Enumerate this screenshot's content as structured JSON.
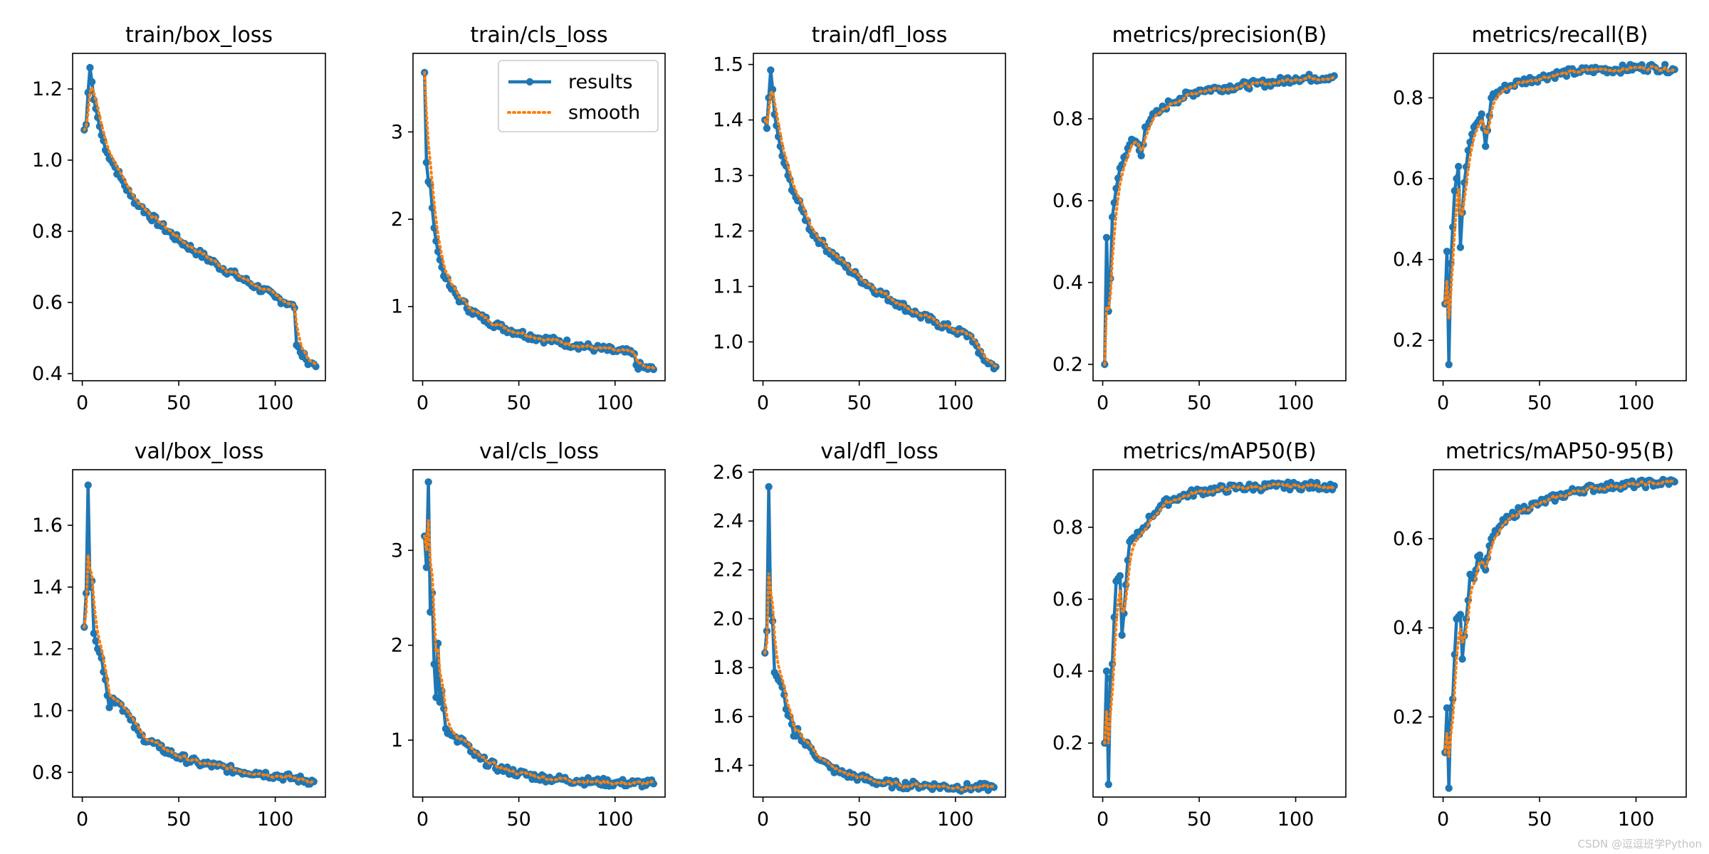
{
  "figure": {
    "legend_labels": {
      "results": "results",
      "smooth": "smooth"
    },
    "watermark": "CSDN @逗逗班学Python",
    "colors": {
      "results": "#1f77b4",
      "smooth": "#ff7f0e",
      "axes": "#000000"
    }
  },
  "chart_data": [
    {
      "type": "line",
      "title": "train/box_loss",
      "xlim": [
        -5,
        126
      ],
      "ylim": [
        0.38,
        1.3
      ],
      "xticks": [
        0,
        50,
        100
      ],
      "yticks": [
        0.4,
        0.6,
        0.8,
        1.0,
        1.2
      ],
      "ytick_labels": [
        "0.4",
        "0.6",
        "0.8",
        "1.0",
        "1.2"
      ],
      "legend": false,
      "key_points": [
        [
          1,
          1.085
        ],
        [
          2,
          1.1
        ],
        [
          3,
          1.19
        ],
        [
          4,
          1.26
        ],
        [
          5,
          1.22
        ],
        [
          6,
          1.17
        ],
        [
          8,
          1.12
        ],
        [
          10,
          1.07
        ],
        [
          13,
          1.02
        ],
        [
          16,
          0.99
        ],
        [
          20,
          0.95
        ],
        [
          25,
          0.9
        ],
        [
          30,
          0.87
        ],
        [
          40,
          0.82
        ],
        [
          50,
          0.775
        ],
        [
          60,
          0.74
        ],
        [
          70,
          0.705
        ],
        [
          80,
          0.675
        ],
        [
          90,
          0.645
        ],
        [
          100,
          0.615
        ],
        [
          108,
          0.595
        ],
        [
          110,
          0.585
        ],
        [
          111,
          0.48
        ],
        [
          113,
          0.46
        ],
        [
          116,
          0.44
        ],
        [
          119,
          0.43
        ],
        [
          121,
          0.42
        ]
      ]
    },
    {
      "type": "line",
      "title": "train/cls_loss",
      "xlim": [
        -5,
        126
      ],
      "ylim": [
        0.15,
        3.9
      ],
      "xticks": [
        0,
        50,
        100
      ],
      "yticks": [
        1,
        2,
        3
      ],
      "ytick_labels": [
        "1",
        "2",
        "3"
      ],
      "legend": true,
      "key_points": [
        [
          1,
          3.68
        ],
        [
          2,
          2.65
        ],
        [
          3,
          2.43
        ],
        [
          4,
          2.4
        ],
        [
          5,
          2.13
        ],
        [
          6,
          1.9
        ],
        [
          7,
          1.75
        ],
        [
          8,
          1.63
        ],
        [
          10,
          1.45
        ],
        [
          12,
          1.32
        ],
        [
          15,
          1.2
        ],
        [
          20,
          1.06
        ],
        [
          25,
          0.96
        ],
        [
          30,
          0.88
        ],
        [
          40,
          0.77
        ],
        [
          50,
          0.7
        ],
        [
          60,
          0.64
        ],
        [
          70,
          0.6
        ],
        [
          80,
          0.56
        ],
        [
          90,
          0.52
        ],
        [
          100,
          0.49
        ],
        [
          110,
          0.46
        ],
        [
          111,
          0.33
        ],
        [
          115,
          0.3
        ],
        [
          120,
          0.28
        ]
      ]
    },
    {
      "type": "line",
      "title": "train/dfl_loss",
      "xlim": [
        -5,
        126
      ],
      "ylim": [
        0.93,
        1.52
      ],
      "xticks": [
        0,
        50,
        100
      ],
      "yticks": [
        1.0,
        1.1,
        1.2,
        1.3,
        1.4,
        1.5
      ],
      "ytick_labels": [
        "1.0",
        "1.1",
        "1.2",
        "1.3",
        "1.4",
        "1.5"
      ],
      "legend": false,
      "key_points": [
        [
          1,
          1.4
        ],
        [
          2,
          1.385
        ],
        [
          3,
          1.44
        ],
        [
          4,
          1.49
        ],
        [
          5,
          1.455
        ],
        [
          6,
          1.41
        ],
        [
          8,
          1.37
        ],
        [
          10,
          1.335
        ],
        [
          13,
          1.3
        ],
        [
          16,
          1.27
        ],
        [
          20,
          1.24
        ],
        [
          25,
          1.2
        ],
        [
          30,
          1.18
        ],
        [
          40,
          1.145
        ],
        [
          50,
          1.115
        ],
        [
          60,
          1.09
        ],
        [
          70,
          1.07
        ],
        [
          80,
          1.05
        ],
        [
          90,
          1.035
        ],
        [
          100,
          1.02
        ],
        [
          108,
          1.01
        ],
        [
          110,
          1.0
        ],
        [
          112,
          0.98
        ],
        [
          116,
          0.965
        ],
        [
          121,
          0.955
        ]
      ]
    },
    {
      "type": "line",
      "title": "metrics/precision(B)",
      "xlim": [
        -5,
        126
      ],
      "ylim": [
        0.16,
        0.96
      ],
      "xticks": [
        0,
        50,
        100
      ],
      "yticks": [
        0.2,
        0.4,
        0.6,
        0.8
      ],
      "ytick_labels": [
        "0.2",
        "0.4",
        "0.6",
        "0.8"
      ],
      "legend": false,
      "key_points": [
        [
          1,
          0.2
        ],
        [
          2,
          0.51
        ],
        [
          3,
          0.33
        ],
        [
          4,
          0.41
        ],
        [
          5,
          0.56
        ],
        [
          7,
          0.63
        ],
        [
          9,
          0.68
        ],
        [
          12,
          0.71
        ],
        [
          15,
          0.75
        ],
        [
          18,
          0.74
        ],
        [
          20,
          0.71
        ],
        [
          22,
          0.78
        ],
        [
          25,
          0.8
        ],
        [
          30,
          0.82
        ],
        [
          35,
          0.84
        ],
        [
          40,
          0.85
        ],
        [
          50,
          0.87
        ],
        [
          60,
          0.875
        ],
        [
          70,
          0.88
        ],
        [
          80,
          0.885
        ],
        [
          90,
          0.89
        ],
        [
          100,
          0.9
        ],
        [
          110,
          0.9
        ],
        [
          120,
          0.905
        ]
      ]
    },
    {
      "type": "line",
      "title": "metrics/recall(B)",
      "xlim": [
        -5,
        126
      ],
      "ylim": [
        0.1,
        0.91
      ],
      "xticks": [
        0,
        50,
        100
      ],
      "yticks": [
        0.2,
        0.4,
        0.6,
        0.8
      ],
      "ytick_labels": [
        "0.2",
        "0.4",
        "0.6",
        "0.8"
      ],
      "legend": false,
      "key_points": [
        [
          1,
          0.29
        ],
        [
          2,
          0.42
        ],
        [
          3,
          0.14
        ],
        [
          4,
          0.39
        ],
        [
          6,
          0.57
        ],
        [
          8,
          0.63
        ],
        [
          9,
          0.43
        ],
        [
          11,
          0.59
        ],
        [
          13,
          0.67
        ],
        [
          15,
          0.71
        ],
        [
          18,
          0.74
        ],
        [
          20,
          0.76
        ],
        [
          22,
          0.68
        ],
        [
          25,
          0.8
        ],
        [
          30,
          0.82
        ],
        [
          35,
          0.83
        ],
        [
          40,
          0.84
        ],
        [
          50,
          0.85
        ],
        [
          60,
          0.86
        ],
        [
          70,
          0.865
        ],
        [
          80,
          0.87
        ],
        [
          90,
          0.87
        ],
        [
          100,
          0.875
        ],
        [
          110,
          0.875
        ],
        [
          120,
          0.87
        ]
      ]
    },
    {
      "type": "line",
      "title": "val/box_loss",
      "xlim": [
        -5,
        126
      ],
      "ylim": [
        0.72,
        1.78
      ],
      "xticks": [
        0,
        50,
        100
      ],
      "yticks": [
        0.8,
        1.0,
        1.2,
        1.4,
        1.6
      ],
      "ytick_labels": [
        "0.8",
        "1.0",
        "1.2",
        "1.4",
        "1.6"
      ],
      "legend": false,
      "key_points": [
        [
          1,
          1.27
        ],
        [
          2,
          1.38
        ],
        [
          3,
          1.73
        ],
        [
          4,
          1.4
        ],
        [
          5,
          1.42
        ],
        [
          6,
          1.25
        ],
        [
          8,
          1.2
        ],
        [
          10,
          1.17
        ],
        [
          12,
          1.1
        ],
        [
          14,
          1.01
        ],
        [
          16,
          1.04
        ],
        [
          18,
          1.03
        ],
        [
          20,
          1.02
        ],
        [
          25,
          0.97
        ],
        [
          30,
          0.92
        ],
        [
          40,
          0.88
        ],
        [
          50,
          0.85
        ],
        [
          60,
          0.83
        ],
        [
          70,
          0.82
        ],
        [
          80,
          0.805
        ],
        [
          90,
          0.8
        ],
        [
          100,
          0.79
        ],
        [
          110,
          0.78
        ],
        [
          120,
          0.77
        ]
      ]
    },
    {
      "type": "line",
      "title": "val/cls_loss",
      "xlim": [
        -5,
        126
      ],
      "ylim": [
        0.4,
        3.85
      ],
      "xticks": [
        0,
        50,
        100
      ],
      "yticks": [
        1,
        2,
        3
      ],
      "ytick_labels": [
        "1",
        "2",
        "3"
      ],
      "legend": false,
      "key_points": [
        [
          1,
          3.15
        ],
        [
          2,
          2.82
        ],
        [
          3,
          3.72
        ],
        [
          4,
          2.35
        ],
        [
          5,
          2.55
        ],
        [
          6,
          1.8
        ],
        [
          7,
          1.45
        ],
        [
          8,
          2.02
        ],
        [
          9,
          1.4
        ],
        [
          10,
          1.52
        ],
        [
          12,
          1.12
        ],
        [
          15,
          1.05
        ],
        [
          18,
          0.98
        ],
        [
          20,
          1.02
        ],
        [
          25,
          0.88
        ],
        [
          30,
          0.8
        ],
        [
          40,
          0.7
        ],
        [
          50,
          0.65
        ],
        [
          60,
          0.61
        ],
        [
          70,
          0.59
        ],
        [
          80,
          0.575
        ],
        [
          90,
          0.56
        ],
        [
          100,
          0.55
        ],
        [
          110,
          0.545
        ],
        [
          120,
          0.54
        ]
      ]
    },
    {
      "type": "line",
      "title": "val/dfl_loss",
      "xlim": [
        -5,
        126
      ],
      "ylim": [
        1.27,
        2.61
      ],
      "xticks": [
        0,
        50,
        100
      ],
      "yticks": [
        1.4,
        1.6,
        1.8,
        2.0,
        2.2,
        2.4,
        2.6
      ],
      "ytick_labels": [
        "1.4",
        "1.6",
        "1.8",
        "2.0",
        "2.2",
        "2.4",
        "2.6"
      ],
      "legend": false,
      "key_points": [
        [
          1,
          1.86
        ],
        [
          2,
          1.95
        ],
        [
          3,
          2.54
        ],
        [
          4,
          2.02
        ],
        [
          5,
          1.99
        ],
        [
          6,
          1.78
        ],
        [
          8,
          1.75
        ],
        [
          10,
          1.72
        ],
        [
          12,
          1.63
        ],
        [
          14,
          1.6
        ],
        [
          16,
          1.52
        ],
        [
          18,
          1.55
        ],
        [
          20,
          1.5
        ],
        [
          25,
          1.47
        ],
        [
          30,
          1.42
        ],
        [
          35,
          1.39
        ],
        [
          40,
          1.37
        ],
        [
          50,
          1.35
        ],
        [
          60,
          1.33
        ],
        [
          70,
          1.32
        ],
        [
          80,
          1.32
        ],
        [
          90,
          1.315
        ],
        [
          100,
          1.31
        ],
        [
          110,
          1.31
        ],
        [
          120,
          1.31
        ]
      ]
    },
    {
      "type": "line",
      "title": "metrics/mAP50(B)",
      "xlim": [
        -5,
        126
      ],
      "ylim": [
        0.05,
        0.96
      ],
      "xticks": [
        0,
        50,
        100
      ],
      "yticks": [
        0.2,
        0.4,
        0.6,
        0.8
      ],
      "ytick_labels": [
        "0.2",
        "0.4",
        "0.6",
        "0.8"
      ],
      "legend": false,
      "key_points": [
        [
          1,
          0.2
        ],
        [
          2,
          0.4
        ],
        [
          3,
          0.085
        ],
        [
          4,
          0.38
        ],
        [
          5,
          0.42
        ],
        [
          6,
          0.55
        ],
        [
          7,
          0.65
        ],
        [
          9,
          0.665
        ],
        [
          10,
          0.5
        ],
        [
          12,
          0.64
        ],
        [
          14,
          0.76
        ],
        [
          17,
          0.77
        ],
        [
          20,
          0.79
        ],
        [
          25,
          0.83
        ],
        [
          30,
          0.86
        ],
        [
          35,
          0.875
        ],
        [
          40,
          0.885
        ],
        [
          50,
          0.9
        ],
        [
          60,
          0.905
        ],
        [
          70,
          0.91
        ],
        [
          80,
          0.912
        ],
        [
          90,
          0.914
        ],
        [
          100,
          0.915
        ],
        [
          110,
          0.915
        ],
        [
          120,
          0.915
        ]
      ]
    },
    {
      "type": "line",
      "title": "metrics/mAP50-95(B)",
      "xlim": [
        -5,
        126
      ],
      "ylim": [
        0.02,
        0.755
      ],
      "xticks": [
        0,
        50,
        100
      ],
      "yticks": [
        0.2,
        0.4,
        0.6
      ],
      "ytick_labels": [
        "0.2",
        "0.4",
        "0.6"
      ],
      "legend": false,
      "key_points": [
        [
          1,
          0.12
        ],
        [
          2,
          0.22
        ],
        [
          3,
          0.04
        ],
        [
          4,
          0.22
        ],
        [
          5,
          0.24
        ],
        [
          6,
          0.34
        ],
        [
          7,
          0.42
        ],
        [
          9,
          0.43
        ],
        [
          10,
          0.33
        ],
        [
          12,
          0.42
        ],
        [
          14,
          0.52
        ],
        [
          16,
          0.51
        ],
        [
          18,
          0.56
        ],
        [
          20,
          0.55
        ],
        [
          22,
          0.53
        ],
        [
          25,
          0.6
        ],
        [
          30,
          0.63
        ],
        [
          35,
          0.65
        ],
        [
          40,
          0.665
        ],
        [
          50,
          0.68
        ],
        [
          60,
          0.695
        ],
        [
          70,
          0.71
        ],
        [
          80,
          0.715
        ],
        [
          90,
          0.72
        ],
        [
          100,
          0.722
        ],
        [
          110,
          0.725
        ],
        [
          120,
          0.728
        ]
      ]
    }
  ]
}
